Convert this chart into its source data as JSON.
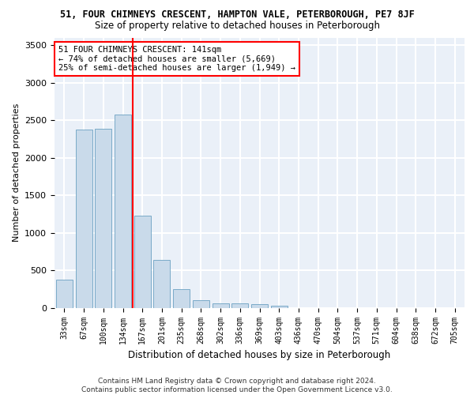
{
  "title": "51, FOUR CHIMNEYS CRESCENT, HAMPTON VALE, PETERBOROUGH, PE7 8JF",
  "subtitle": "Size of property relative to detached houses in Peterborough",
  "xlabel": "Distribution of detached houses by size in Peterborough",
  "ylabel": "Number of detached properties",
  "bar_color": "#c9daea",
  "bar_edge_color": "#7aaac8",
  "background_color": "#eaf0f8",
  "grid_color": "#ffffff",
  "categories": [
    "33sqm",
    "67sqm",
    "100sqm",
    "134sqm",
    "167sqm",
    "201sqm",
    "235sqm",
    "268sqm",
    "302sqm",
    "336sqm",
    "369sqm",
    "403sqm",
    "436sqm",
    "470sqm",
    "504sqm",
    "537sqm",
    "571sqm",
    "604sqm",
    "638sqm",
    "672sqm",
    "705sqm"
  ],
  "values": [
    380,
    2380,
    2390,
    2580,
    1230,
    640,
    250,
    100,
    60,
    60,
    50,
    30,
    0,
    0,
    0,
    0,
    0,
    0,
    0,
    0,
    0
  ],
  "red_line_index": 3,
  "annotation_text": "51 FOUR CHIMNEYS CRESCENT: 141sqm\n← 74% of detached houses are smaller (5,669)\n25% of semi-detached houses are larger (1,949) →",
  "ylim": [
    0,
    3600
  ],
  "yticks": [
    0,
    500,
    1000,
    1500,
    2000,
    2500,
    3000,
    3500
  ],
  "footer": "Contains HM Land Registry data © Crown copyright and database right 2024.\nContains public sector information licensed under the Open Government Licence v3.0."
}
